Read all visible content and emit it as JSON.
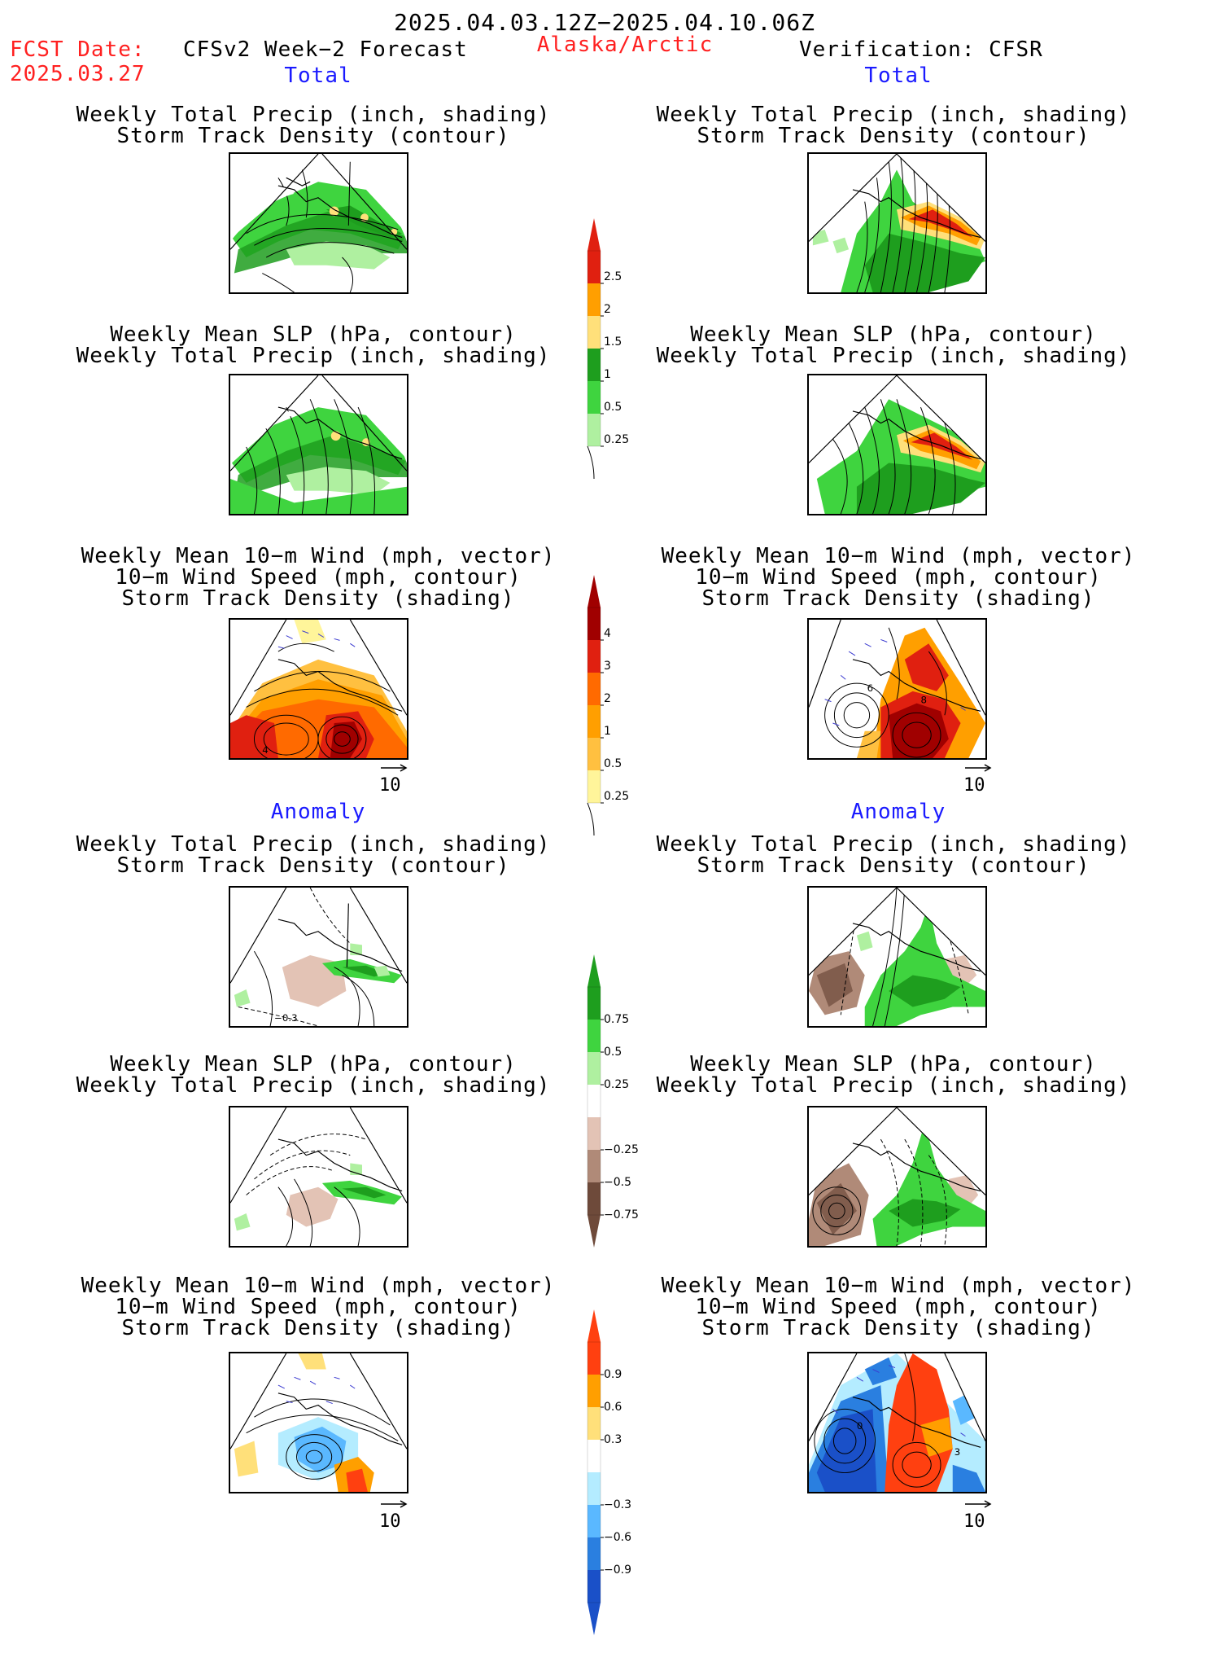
{
  "header": {
    "period": "2025.04.03.12Z−2025.04.10.06Z",
    "fcst_label": "FCST Date:",
    "fcst_date": "2025.03.27",
    "model": "CFSv2 Week−2 Forecast",
    "region": "Alaska/Arctic",
    "verification": "Verification: CFSR"
  },
  "sections": {
    "total": "Total",
    "anomaly": "Anomaly"
  },
  "titles": {
    "precip_track_1": "Weekly Total Precip (inch, shading)",
    "precip_track_2": "Storm Track Density (contour)",
    "slp_precip_1": "Weekly Mean SLP (hPa, contour)",
    "slp_precip_2": "Weekly Total Precip (inch, shading)",
    "wind_1": "Weekly Mean 10−m Wind (mph, vector)",
    "wind_2": "10−m Wind Speed (mph, contour)",
    "wind_3": "Storm Track Density (shading)"
  },
  "vector_ref": "10",
  "colorbars": {
    "precip_total": {
      "ticks": [
        "2.5",
        "2",
        "1.5",
        "1",
        "0.5",
        "0.25"
      ],
      "colors": [
        "#e02010",
        "#ff9f00",
        "#ffe07a",
        "#1e9e1e",
        "#3fd43f",
        "#aff0a0"
      ]
    },
    "track_total": {
      "ticks": [
        "4",
        "3",
        "2",
        "1",
        "0.5",
        "0.25"
      ],
      "colors": [
        "#a00000",
        "#e02010",
        "#ff6a00",
        "#ff9f00",
        "#ffc040",
        "#fff59a"
      ]
    },
    "precip_anom": {
      "ticks": [
        "0.75",
        "0.5",
        "0.25",
        "−0.25",
        "−0.5",
        "−0.75"
      ],
      "colors": [
        "#1e9e1e",
        "#3fd43f",
        "#aff0a0",
        "#ffffff",
        "#e3c3b5",
        "#b08a78",
        "#6e4a3a"
      ]
    },
    "track_anom": {
      "ticks": [
        "0.9",
        "0.6",
        "0.3",
        "−0.3",
        "−0.6",
        "−0.9"
      ],
      "colors": [
        "#ff4010",
        "#ff9f00",
        "#ffe07a",
        "#ffffff",
        "#b4ecff",
        "#5ab8ff",
        "#2a7fe0",
        "#1a50c8"
      ]
    }
  },
  "panel_labels": {
    "anom_precip_left": "−0.3",
    "wind_total_left": "4",
    "wind_total_right_a": "6",
    "wind_total_right_b": "8",
    "wind_anom_right_a": "0",
    "wind_anom_right_b": "3"
  }
}
